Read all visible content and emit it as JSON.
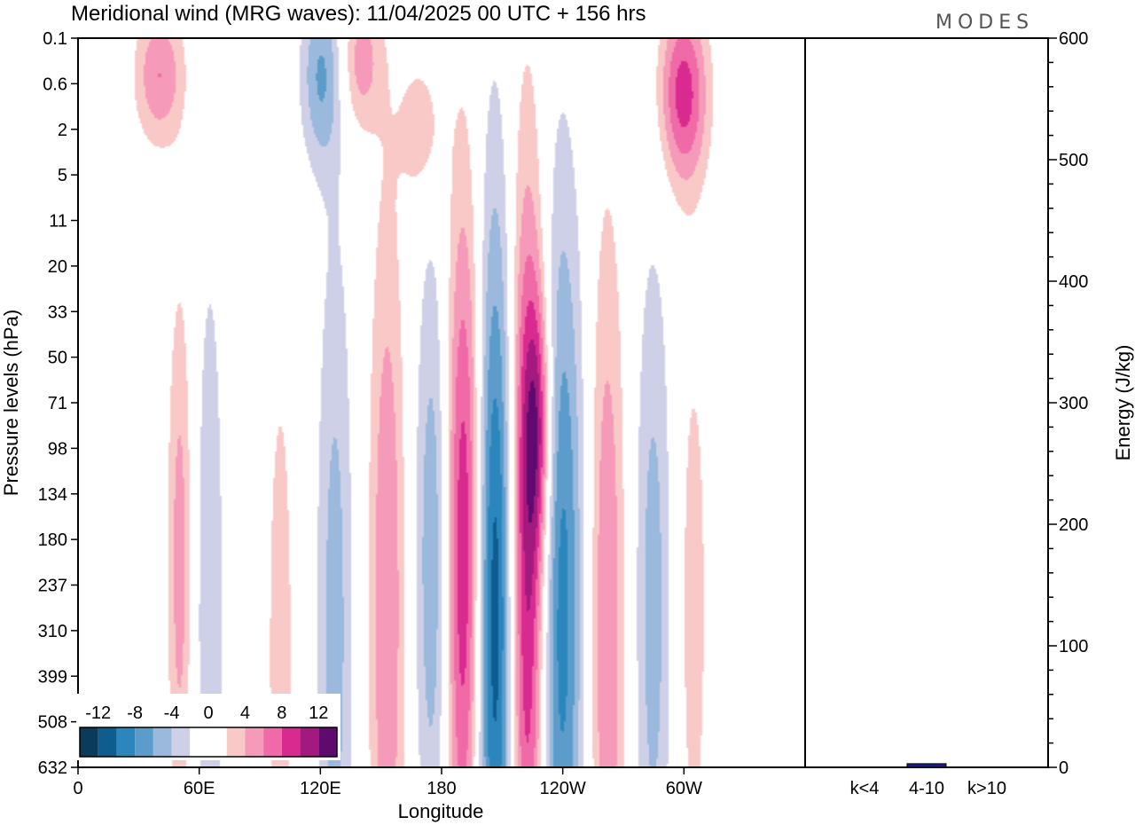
{
  "title": "Meridional wind (MRG waves):  11/04/2025  00 UTC  + 156 hrs",
  "logo": "MODES",
  "colors": {
    "neg": [
      "#0b3b5a",
      "#0f5d8e",
      "#2a86bd",
      "#5b9ccb",
      "#9ab9dc",
      "#cdd0e6"
    ],
    "pos": [
      "#f9c9c7",
      "#f59ab8",
      "#ef6aa6",
      "#d92a8f",
      "#a31a7f",
      "#5e0a6e"
    ],
    "bar": "#1a1a8c"
  },
  "chart_data": [
    {
      "type": "heatmap",
      "name": "meridional-wind-contour",
      "xlabel": "Longitude",
      "ylabel": "Pressure levels (hPa)",
      "x_ticks": [
        "0",
        "60E",
        "120E",
        "180",
        "120W",
        "60W"
      ],
      "x_tick_degrees": [
        0,
        60,
        120,
        180,
        240,
        300
      ],
      "xlim": [
        0,
        360
      ],
      "y_ticks": [
        "0.1",
        "0.6",
        "2",
        "5",
        "11",
        "20",
        "33",
        "50",
        "71",
        "98",
        "134",
        "180",
        "237",
        "310",
        "399",
        "508",
        "632"
      ],
      "colorbar_labels": [
        "-12",
        "-8",
        "-4",
        "0",
        "4",
        "8",
        "12"
      ],
      "colorbar_levels": [
        -12,
        -10,
        -8,
        -6,
        -4,
        -2,
        2,
        4,
        6,
        8,
        10,
        12
      ],
      "features": [
        {
          "lon": 192,
          "level_index": 11.5,
          "value": 12,
          "lon_width": 10,
          "level_span": 8
        },
        {
          "lon": 207,
          "level_index": 12.5,
          "value": -14,
          "lon_width": 12,
          "level_span": 9
        },
        {
          "lon": 222,
          "level_index": 12.0,
          "value": 14,
          "lon_width": 11,
          "level_span": 9
        },
        {
          "lon": 238,
          "level_index": 12.5,
          "value": -10,
          "lon_width": 12,
          "level_span": 9
        },
        {
          "lon": 176,
          "level_index": 11.5,
          "value": -6,
          "lon_width": 9,
          "level_span": 7
        },
        {
          "lon": 153,
          "level_index": 12.5,
          "value": 6,
          "lon_width": 9,
          "level_span": 9
        },
        {
          "lon": 127,
          "level_index": 13.0,
          "value": -5,
          "lon_width": 9,
          "level_span": 9
        },
        {
          "lon": 262,
          "level_index": 13.0,
          "value": 6,
          "lon_width": 9,
          "level_span": 9
        },
        {
          "lon": 285,
          "level_index": 12.5,
          "value": -5,
          "lon_width": 9,
          "level_span": 8
        },
        {
          "lon": 305,
          "level_index": 12.5,
          "value": 3,
          "lon_width": 8,
          "level_span": 7
        },
        {
          "lon": 65,
          "level_index": 12.5,
          "value": -4,
          "lon_width": 7,
          "level_span": 8
        },
        {
          "lon": 50,
          "level_index": 11.5,
          "value": 5,
          "lon_width": 6,
          "level_span": 6
        },
        {
          "lon": 100,
          "level_index": 13.5,
          "value": 4,
          "lon_width": 6,
          "level_span": 6
        },
        {
          "lon": 228,
          "level_index": 8.5,
          "value": 7,
          "lon_width": 7,
          "level_span": 3
        },
        {
          "lon": 300,
          "level_index": 1.2,
          "value": 9,
          "lon_width": 12,
          "level_span": 2
        },
        {
          "lon": 40,
          "level_index": 0.8,
          "value": 6,
          "lon_width": 12,
          "level_span": 1.5
        },
        {
          "lon": 120,
          "level_index": 0.8,
          "value": -6,
          "lon_width": 10,
          "level_span": 2
        },
        {
          "lon": 140,
          "level_index": 0.5,
          "value": 5,
          "lon_width": 10,
          "level_span": 1.5
        },
        {
          "lon": 170,
          "level_index": 2.0,
          "value": 4,
          "lon_width": 10,
          "level_span": 1.5
        }
      ]
    },
    {
      "type": "bar",
      "name": "energy-bars",
      "ylabel": "Energy (J/kg)",
      "categories": [
        "k<4",
        "4-10",
        "k>10"
      ],
      "values": [
        0,
        3,
        0
      ],
      "ylim": [
        0,
        600
      ],
      "y_ticks": [
        0,
        100,
        200,
        300,
        400,
        500,
        600
      ]
    }
  ]
}
